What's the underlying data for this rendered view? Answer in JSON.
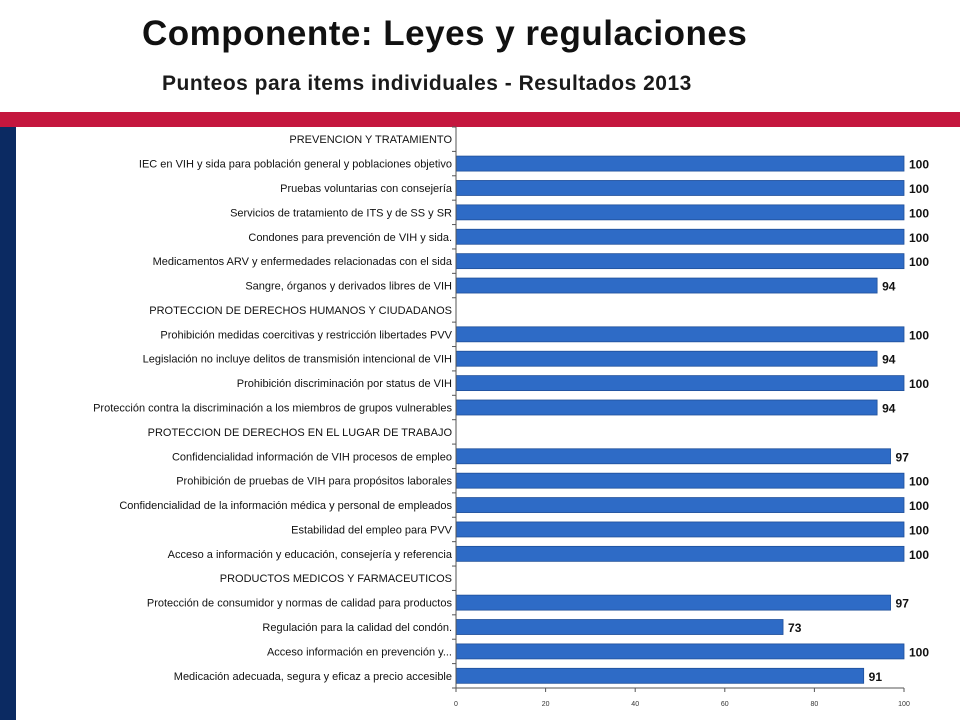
{
  "header": {
    "title": "Componente: Leyes y regulaciones",
    "subtitle": "Punteos para items individuales - Resultados 2013"
  },
  "colors": {
    "bar": "#2e6bc6",
    "bar_stroke": "#1f4f99",
    "accent_red": "#c4173e",
    "accent_navy": "#0b2a62"
  },
  "chart_data": {
    "type": "bar",
    "orientation": "horizontal",
    "title": "",
    "xlabel": "",
    "ylabel": "",
    "xlim": [
      0,
      100
    ],
    "xticks": [
      0,
      20,
      40,
      60,
      80,
      100
    ],
    "grid": false,
    "categories": [
      "PREVENCION Y TRATAMIENTO",
      "IEC en VIH y sida para población general y poblaciones objetivo",
      "Pruebas voluntarias con consejería",
      "Servicios de tratamiento de ITS y de SS y SR",
      "Condones para prevención de VIH y sida.",
      "Medicamentos ARV y enfermedades relacionadas con el sida",
      "Sangre, órganos y derivados libres de VIH",
      "PROTECCION DE DERECHOS HUMANOS Y CIUDADANOS",
      "Prohibición medidas coercitivas y restricción libertades PVV",
      "Legislación no incluye delitos de transmisión intencional de VIH",
      "Prohibición discriminación por status de VIH",
      "Protección contra la discriminación a los miembros de grupos vulnerables",
      "PROTECCION DE DERECHOS EN EL LUGAR DE TRABAJO",
      "Confidencialidad información de VIH procesos de empleo",
      "Prohibición de pruebas de VIH para propósitos laborales",
      "Confidencialidad de la información médica y personal de empleados",
      "Estabilidad del empleo para PVV",
      "Acceso a información y educación, consejería y referencia",
      "PRODUCTOS MEDICOS Y FARMACEUTICOS",
      "Protección de consumidor y normas de calidad para productos",
      "Regulación para la calidad del condón.",
      "Acceso información en prevención y...",
      "Medicación adecuada, segura y eficaz a precio accesible"
    ],
    "values": [
      null,
      100,
      100,
      100,
      100,
      100,
      94,
      null,
      100,
      94,
      100,
      94,
      null,
      97,
      100,
      100,
      100,
      100,
      null,
      97,
      73,
      100,
      91
    ]
  }
}
